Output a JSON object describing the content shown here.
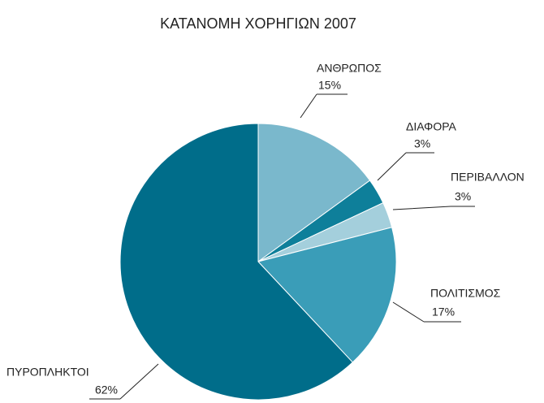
{
  "chart_data": {
    "type": "pie",
    "title": "ΚΑΤΑΝΟΜΗ ΧΟΡΗΓΙΩΝ 2007",
    "categories": [
      "ΑΝΘΡΩΠΟΣ",
      "ΔΙΑΦΟΡΑ",
      "ΠΕΡΙΒΑΛΛΟΝ",
      "ΠΟΛΙΤΙΣΜΟΣ",
      "ΠΥΡΟΠΛΗΚΤΟΙ"
    ],
    "values": [
      15,
      3,
      3,
      17,
      62
    ],
    "value_labels": [
      "15%",
      "3%",
      "3%",
      "17%",
      "62%"
    ],
    "colors": [
      "#7ab8cc",
      "#0e7f9a",
      "#a4cfdc",
      "#3a9db8",
      "#006d8a"
    ]
  }
}
